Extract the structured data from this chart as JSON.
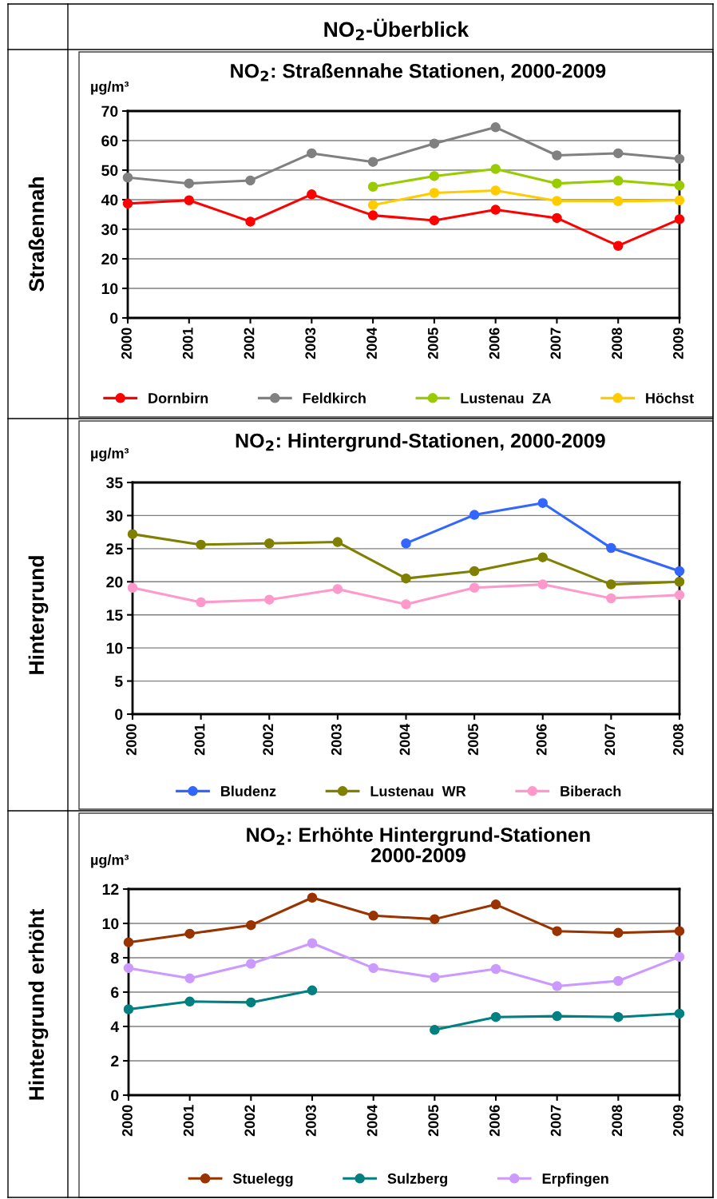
{
  "chart_data": [
    {
      "type": "line",
      "title": "NO$_{2}$: Straßennahe Stationen, 2000-2009",
      "ylabel": "µg/m³",
      "annotations": [
        "NO$_{2}$-Überblick",
        "Straßennah"
      ],
      "categories": [
        "2000",
        "2001",
        "2002",
        "2003",
        "2004",
        "2005",
        "2006",
        "2007",
        "2008",
        "2009"
      ],
      "series": [
        {
          "name": "Dornbirn",
          "color": "#ff0000",
          "values": [
            38.7,
            39.8,
            32.6,
            41.8,
            34.7,
            33.0,
            36.6,
            33.8,
            24.4,
            33.4
          ]
        },
        {
          "name": "Feldkirch",
          "color": "#808080",
          "values": [
            47.5,
            45.5,
            46.5,
            55.7,
            52.8,
            59.0,
            64.5,
            55.0,
            55.7,
            53.8
          ]
        },
        {
          "name": "Lustenau  ZA",
          "color": "#99cc00",
          "values": [
            null,
            null,
            null,
            null,
            44.4,
            48.0,
            50.4,
            45.5,
            46.4,
            44.8
          ]
        },
        {
          "name": "Höchst",
          "color": "#ffcc00",
          "values": [
            null,
            null,
            null,
            null,
            38.2,
            42.3,
            43.1,
            39.6,
            39.5,
            39.8
          ]
        }
      ],
      "ylim": [
        0,
        70
      ],
      "yticks": [
        0,
        10,
        20,
        30,
        40,
        50,
        60,
        70
      ],
      "grid": "y",
      "legend": "bottom",
      "marker": "circle",
      "line_style": "solid"
    },
    {
      "type": "line",
      "title": "NO$_{2}$: Hintergrund-Stationen, 2000-2009",
      "ylabel": "µg/m³",
      "annotations": [
        "Hintergrund"
      ],
      "categories": [
        "2000",
        "2001",
        "2002",
        "2003",
        "2004",
        "2005",
        "2006",
        "2007",
        "2008"
      ],
      "series": [
        {
          "name": "Bludenz",
          "color": "#3366ff",
          "values": [
            null,
            null,
            null,
            null,
            25.8,
            30.1,
            31.9,
            25.1,
            21.6
          ]
        },
        {
          "name": "Lustenau  WR",
          "color": "#808000",
          "values": [
            27.2,
            25.6,
            25.8,
            26.0,
            20.5,
            21.6,
            23.7,
            19.6,
            20.0
          ]
        },
        {
          "name": "Biberach",
          "color": "#ff99cc",
          "values": [
            19.1,
            16.9,
            17.3,
            18.9,
            16.6,
            19.1,
            19.6,
            17.5,
            18.0
          ]
        }
      ],
      "ylim": [
        0,
        35
      ],
      "yticks": [
        0,
        5,
        10,
        15,
        20,
        25,
        30,
        35
      ],
      "grid": "y",
      "legend": "bottom",
      "marker": "circle",
      "line_style": "solid"
    },
    {
      "type": "line",
      "title": "NO$_{2}$: Erhöhte Hintergrund-Stationen\n2000-2009",
      "ylabel": "µg/m³",
      "annotations": [
        "Hintergrund erhöht"
      ],
      "categories": [
        "2000",
        "2001",
        "2002",
        "2003",
        "2004",
        "2005",
        "2006",
        "2007",
        "2008",
        "2009"
      ],
      "series": [
        {
          "name": "Stuelegg",
          "color": "#993300",
          "values": [
            8.9,
            9.4,
            9.9,
            11.5,
            10.45,
            10.25,
            11.1,
            9.55,
            9.45,
            9.55
          ]
        },
        {
          "name": "Sulzberg",
          "color": "#008080",
          "values": [
            5.0,
            5.45,
            5.4,
            6.1,
            null,
            3.8,
            4.55,
            4.6,
            4.55,
            4.75
          ]
        },
        {
          "name": "Erpfingen",
          "color": "#cc99ff",
          "values": [
            7.4,
            6.8,
            7.65,
            8.85,
            7.4,
            6.85,
            7.35,
            6.35,
            6.65,
            8.05
          ]
        }
      ],
      "ylim": [
        0,
        12
      ],
      "yticks": [
        0,
        2,
        4,
        6,
        8,
        10,
        12
      ],
      "grid": "y",
      "legend": "bottom",
      "marker": "circle",
      "line_style": "solid"
    }
  ]
}
